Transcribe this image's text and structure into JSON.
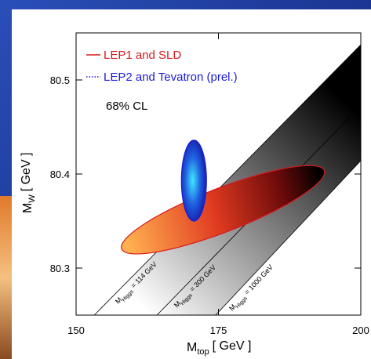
{
  "chart_data": {
    "type": "ellipse",
    "xlim": [
      150,
      200
    ],
    "ylim": [
      80.25,
      80.55
    ],
    "xticks": [
      150,
      175,
      200
    ],
    "yticks": [
      80.3,
      80.4,
      80.5
    ],
    "x_label": {
      "symbol": "M",
      "subscript": "top",
      "unit": "[ GeV ]"
    },
    "y_label": {
      "symbol": "M",
      "subscript": "W",
      "unit": "[ GeV ]"
    },
    "annotation": "68% CL",
    "series": [
      {
        "name": "LEP1 and SLD",
        "color": "#d7191c",
        "line_style": "solid",
        "center": [
          175.8,
          80.362
        ],
        "axis1": [
          17.8,
          0.0417
        ],
        "axis2": [
          1.4,
          -0.0217
        ]
      },
      {
        "name": "LEP2 and Tevatron (prel.)",
        "color": "#1a1adc",
        "line_style": "dotted",
        "center": [
          170.7,
          80.393
        ],
        "axis1": [
          2.2,
          0
        ],
        "axis2": [
          0,
          0.043
        ]
      }
    ],
    "higgs_lines": [
      {
        "x": [
          153.2,
          200
        ],
        "y": [
          80.25,
          80.5375
        ],
        "label": {
          "symbol": "M",
          "subscript": "Higgs",
          "text": "= 114 GeV"
        }
      },
      {
        "x": [
          164.2,
          200
        ],
        "y": [
          80.25,
          80.4725
        ],
        "label": {
          "symbol": "M",
          "subscript": "Higgs",
          "text": "= 300 GeV"
        }
      },
      {
        "x": [
          174.5,
          200
        ],
        "y": [
          80.25,
          80.4142
        ],
        "label": {
          "symbol": "M",
          "subscript": "Higgs",
          "text": "= 1000 GeV"
        }
      }
    ]
  }
}
